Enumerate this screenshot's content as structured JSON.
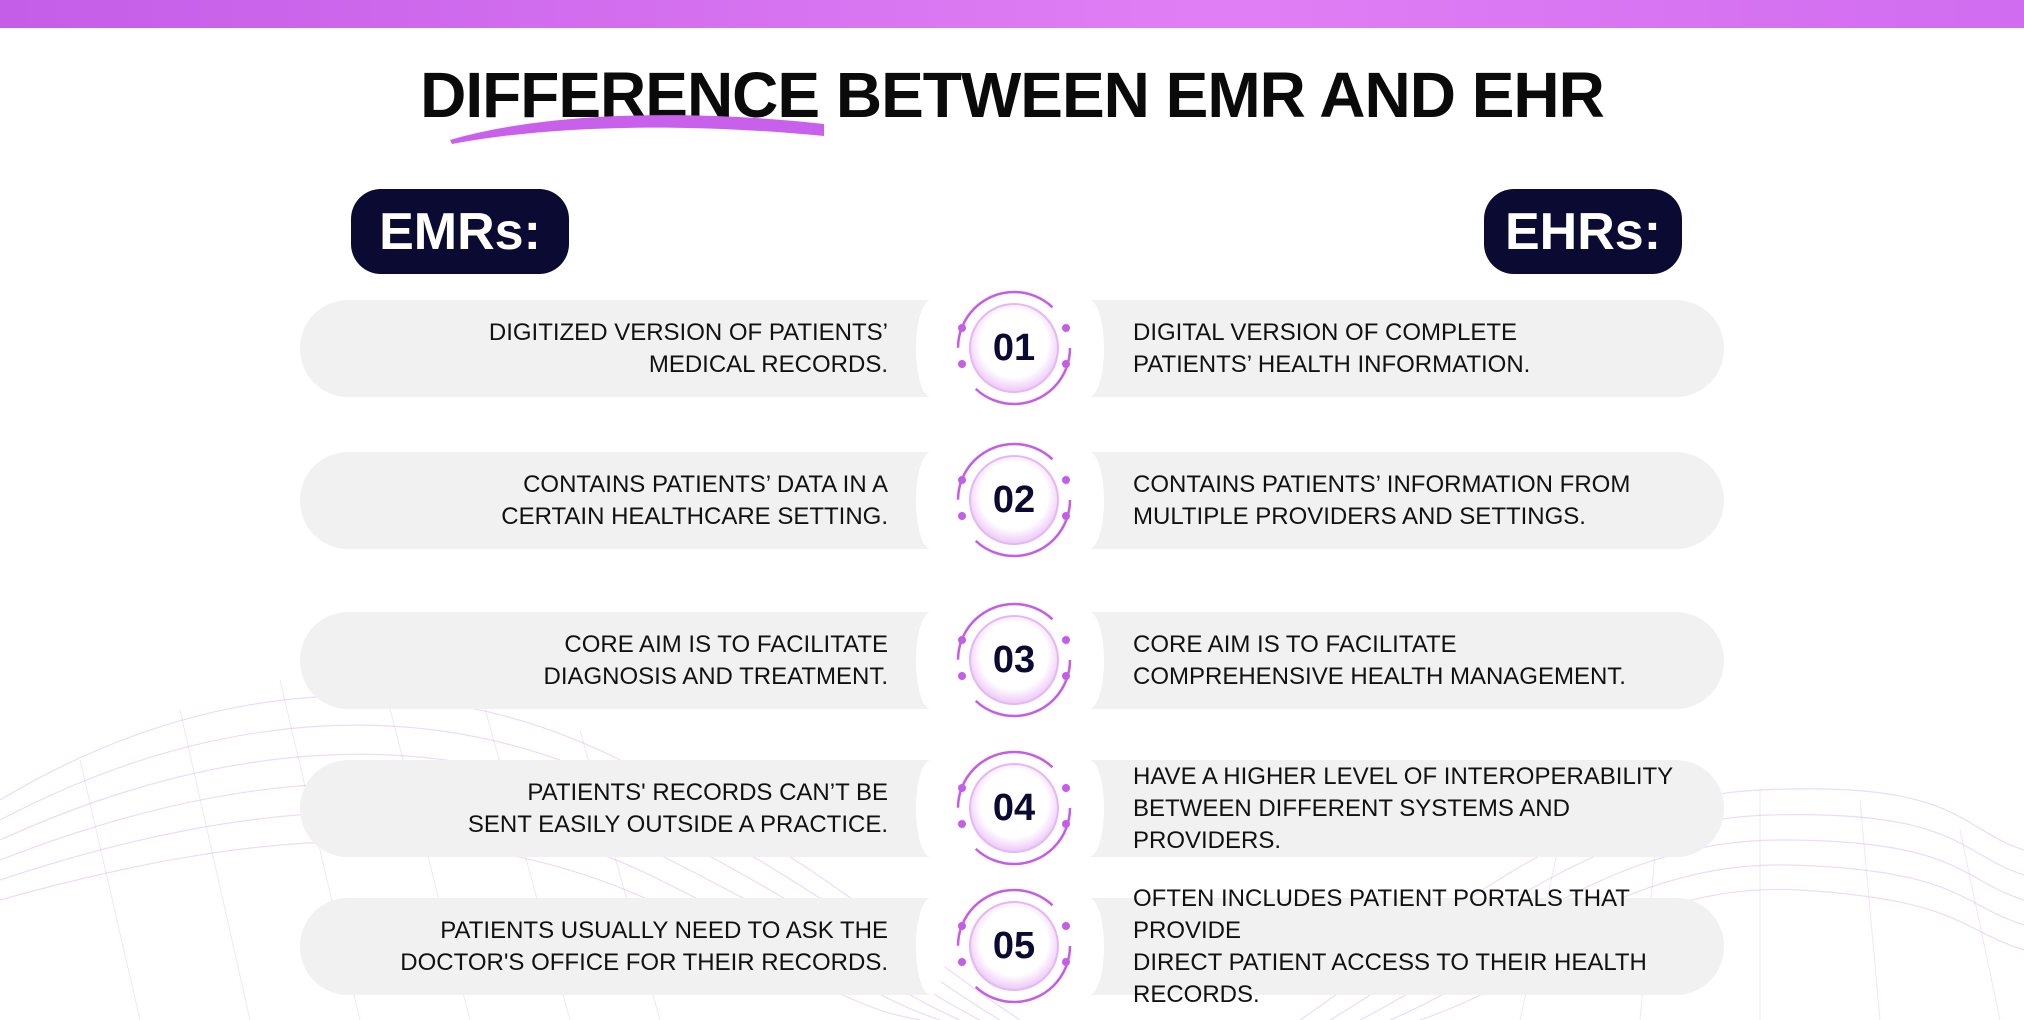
{
  "title": "DIFFERENCE BETWEEN EMR AND EHR",
  "left_heading": "EMRs:",
  "right_heading": "EHRs:",
  "colors": {
    "accent": "#c45de8",
    "heading_bg": "#0b0a32",
    "pill_bg": "#f1f1f1"
  },
  "rows": [
    {
      "number": "01",
      "emr": [
        "DIGITIZED VERSION  OF PATIENTS’",
        "MEDICAL RECORDS."
      ],
      "ehr": [
        "DIGITAL VERSION OF COMPLETE",
        "PATIENTS’ HEALTH INFORMATION."
      ]
    },
    {
      "number": "02",
      "emr": [
        "CONTAINS PATIENTS’ DATA IN A",
        "CERTAIN HEALTHCARE SETTING."
      ],
      "ehr": [
        "CONTAINS PATIENTS’ INFORMATION FROM",
        " MULTIPLE PROVIDERS AND SETTINGS."
      ]
    },
    {
      "number": "03",
      "emr": [
        "CORE AIM IS TO FACILITATE",
        "DIAGNOSIS AND TREATMENT."
      ],
      "ehr": [
        "CORE AIM IS TO FACILITATE",
        "COMPREHENSIVE HEALTH MANAGEMENT."
      ]
    },
    {
      "number": "04",
      "emr": [
        "PATIENTS' RECORDS CAN’T BE",
        "SENT EASILY OUTSIDE A PRACTICE."
      ],
      "ehr": [
        "HAVE A HIGHER LEVEL OF INTEROPERABILITY",
        "BETWEEN DIFFERENT SYSTEMS AND PROVIDERS."
      ]
    },
    {
      "number": "05",
      "emr": [
        "PATIENTS USUALLY NEED TO ASK THE",
        "DOCTOR'S OFFICE FOR THEIR RECORDS."
      ],
      "ehr": [
        "OFTEN INCLUDES PATIENT PORTALS THAT PROVIDE",
        "DIRECT PATIENT ACCESS TO THEIR HEALTH RECORDS."
      ]
    }
  ]
}
